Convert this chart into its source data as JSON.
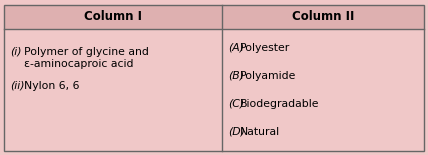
{
  "col1_header": "Column I",
  "col2_header": "Column II",
  "col1_row1_roman": "(i)",
  "col1_row1_text": " Polymer of glycine and\n    ε-aminocaproic acid",
  "col1_row2_roman": "(ii)",
  "col1_row2_text": " Nylon 6, 6",
  "col2_items_letter": [
    "(A)",
    "(B)",
    "(C)",
    "(D)"
  ],
  "col2_items_text": [
    " Polyester",
    " Polyamide",
    " Biodegradable",
    " Natural"
  ],
  "bg_color": "#f0c8c8",
  "header_bg": "#deb0b0",
  "border_color": "#666666",
  "header_fontsize": 8.5,
  "body_fontsize": 7.8,
  "figsize": [
    4.28,
    1.55
  ],
  "dpi": 100
}
